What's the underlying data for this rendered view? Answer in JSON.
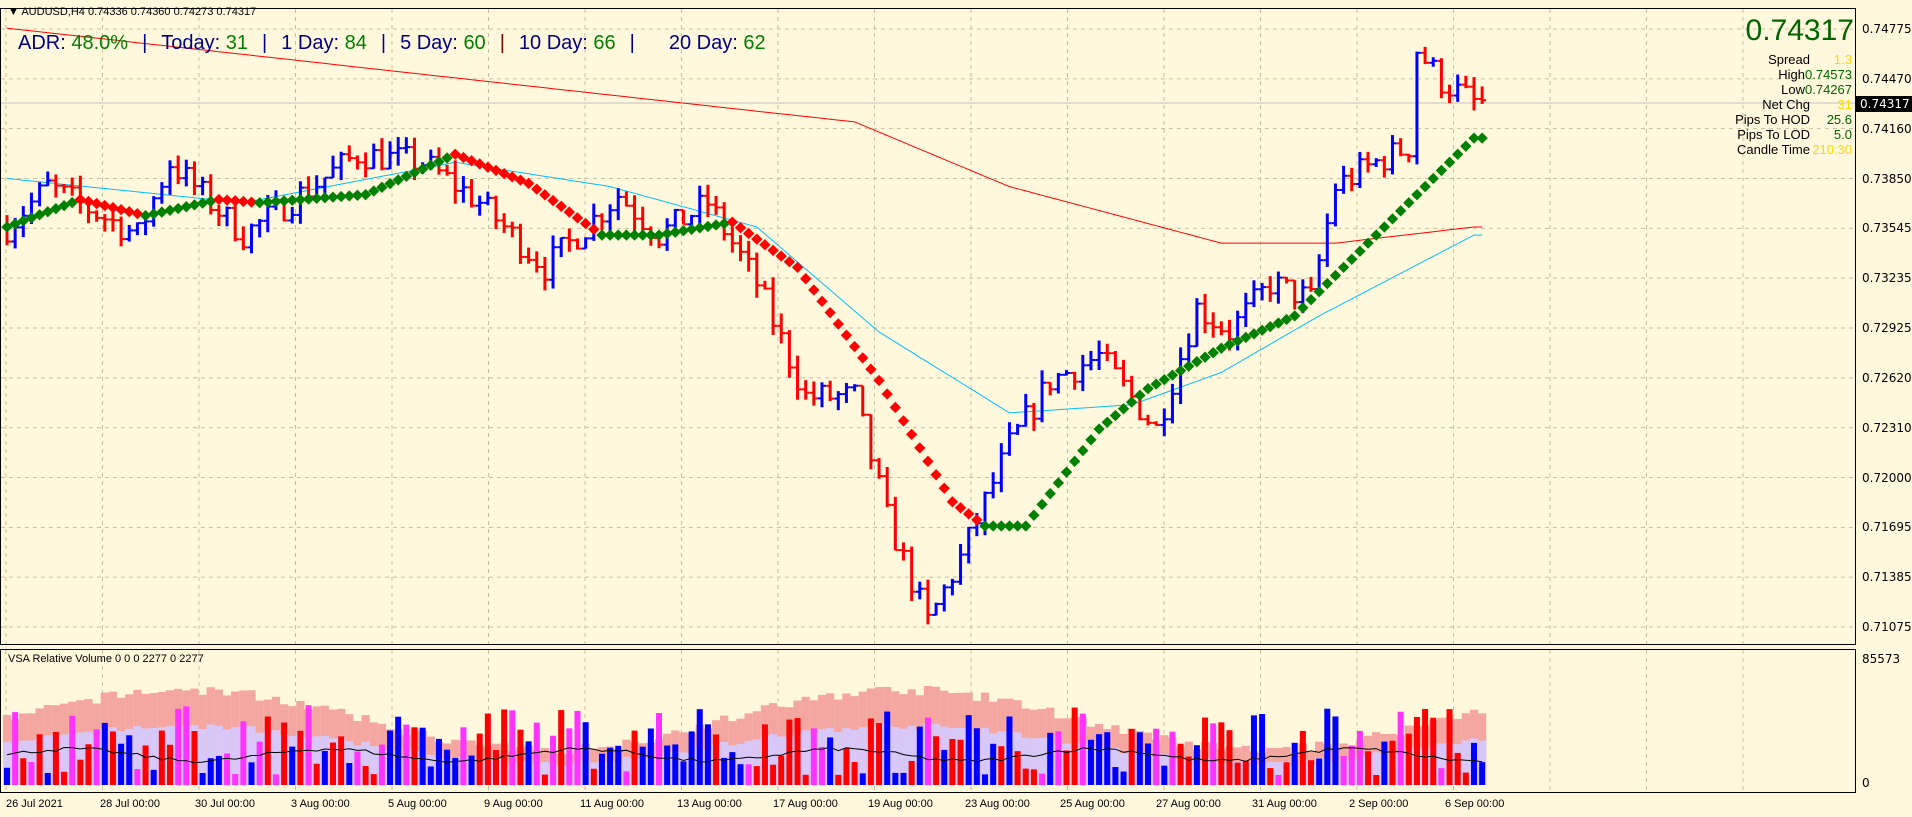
{
  "header": {
    "symbol_line": "AUDUSD,H4  0.74336 0.74360 0.74273 0.74317"
  },
  "adr": {
    "adr_label": "ADR:",
    "adr_value": "48.0%",
    "today_label": "Today:",
    "today_value": "31",
    "d1_label": "1 Day:",
    "d1_value": "84",
    "d5_label": "5 Day:",
    "d5_value": "60",
    "d10_label": "10 Day:",
    "d10_value": "66",
    "d20_label": "20 Day:",
    "d20_value": "62",
    "separator": "|"
  },
  "info": {
    "price": "0.74317",
    "rows": [
      {
        "label": "Spread",
        "value": "1.3",
        "color": "#ffd700"
      },
      {
        "label": "High",
        "value": "0.74573",
        "color": "#006400"
      },
      {
        "label": "Low",
        "value": "0.74267",
        "color": "#006400"
      },
      {
        "label": "Net Chg",
        "value": "31",
        "color": "#ffd700"
      },
      {
        "label": "Pips To HOD",
        "value": "25.6",
        "color": "#006400"
      },
      {
        "label": "Pips To LOD",
        "value": "5.0",
        "color": "#006400"
      },
      {
        "label": "Candle Time",
        "value": "210:30",
        "color": "#ffd700"
      }
    ]
  },
  "price_axis": {
    "labels": [
      "0.74775",
      "0.74470",
      "0.74160",
      "0.73850",
      "0.73545",
      "0.73235",
      "0.72925",
      "0.72620",
      "0.72310",
      "0.72000",
      "0.71695",
      "0.71385",
      "0.71075"
    ],
    "current": "0.74317"
  },
  "time_axis": {
    "labels": [
      "26 Jul 2021",
      "28 Jul 00:00",
      "30 Jul 00:00",
      "3 Aug 00:00",
      "5 Aug 00:00",
      "9 Aug 00:00",
      "11 Aug 00:00",
      "13 Aug 00:00",
      "17 Aug 00:00",
      "19 Aug 00:00",
      "23 Aug 00:00",
      "25 Aug 00:00",
      "27 Aug 00:00",
      "31 Aug 00:00",
      "2 Sep 00:00",
      "6 Sep 00:00"
    ]
  },
  "volume": {
    "title": "VSA Relative Volume 0 0 0 2277 0 2277",
    "max_label": "85573",
    "min_label": "0"
  },
  "colors": {
    "bg": "#fff8dc",
    "up": "#0000ff",
    "down": "#ff0000",
    "trend_up": "#008000",
    "trend_down": "#ff0000",
    "ma_slow": "#ff0000",
    "ma_fast": "#00bfff"
  },
  "chart_data": {
    "type": "line",
    "price_range": [
      0.71075,
      0.74775
    ],
    "bars": 181,
    "price_path": [
      [
        0,
        0.7355
      ],
      [
        5,
        0.738
      ],
      [
        16,
        0.735
      ],
      [
        20,
        0.7395
      ],
      [
        29,
        0.735
      ],
      [
        43,
        0.74
      ],
      [
        51,
        0.7395
      ],
      [
        58,
        0.737
      ],
      [
        66,
        0.733
      ],
      [
        75,
        0.7375
      ],
      [
        80,
        0.735
      ],
      [
        86,
        0.737
      ],
      [
        92,
        0.732
      ],
      [
        98,
        0.725
      ],
      [
        104,
        0.725
      ],
      [
        108,
        0.7175
      ],
      [
        113,
        0.711
      ],
      [
        117,
        0.715
      ],
      [
        123,
        0.722
      ],
      [
        128,
        0.726
      ],
      [
        134,
        0.7275
      ],
      [
        141,
        0.723
      ],
      [
        146,
        0.7305
      ],
      [
        150,
        0.729
      ],
      [
        155,
        0.732
      ],
      [
        160,
        0.731
      ],
      [
        163,
        0.738
      ],
      [
        168,
        0.7395
      ],
      [
        172,
        0.7405
      ],
      [
        173,
        0.7465
      ],
      [
        176,
        0.7445
      ],
      [
        180,
        0.7432
      ]
    ],
    "ma_slow": [
      [
        0,
        0.7478
      ],
      [
        59,
        0.7445
      ],
      [
        104,
        0.742
      ],
      [
        123,
        0.738
      ],
      [
        149,
        0.7345
      ],
      [
        163,
        0.7345
      ],
      [
        180,
        0.7355
      ]
    ],
    "ma_fast": [
      [
        0,
        0.7385
      ],
      [
        29,
        0.737
      ],
      [
        55,
        0.7395
      ],
      [
        74,
        0.738
      ],
      [
        92,
        0.7355
      ],
      [
        107,
        0.729
      ],
      [
        123,
        0.724
      ],
      [
        138,
        0.7245
      ],
      [
        149,
        0.7265
      ],
      [
        161,
        0.73
      ],
      [
        180,
        0.735
      ]
    ],
    "trend": [
      [
        0,
        0.7355
      ],
      [
        9,
        0.7372
      ],
      [
        17,
        0.7362
      ],
      [
        26,
        0.7372
      ],
      [
        31,
        0.737
      ],
      [
        44,
        0.7375
      ],
      [
        55,
        0.74
      ],
      [
        64,
        0.7382
      ],
      [
        73,
        0.735
      ],
      [
        80,
        0.735
      ],
      [
        89,
        0.7358
      ],
      [
        97,
        0.733
      ],
      [
        107,
        0.726
      ],
      [
        116,
        0.7185
      ],
      [
        120,
        0.717
      ],
      [
        125,
        0.717
      ],
      [
        134,
        0.723
      ],
      [
        140,
        0.7255
      ],
      [
        149,
        0.728
      ],
      [
        158,
        0.73
      ],
      [
        164,
        0.733
      ],
      [
        170,
        0.736
      ],
      [
        180,
        0.741
      ]
    ]
  }
}
